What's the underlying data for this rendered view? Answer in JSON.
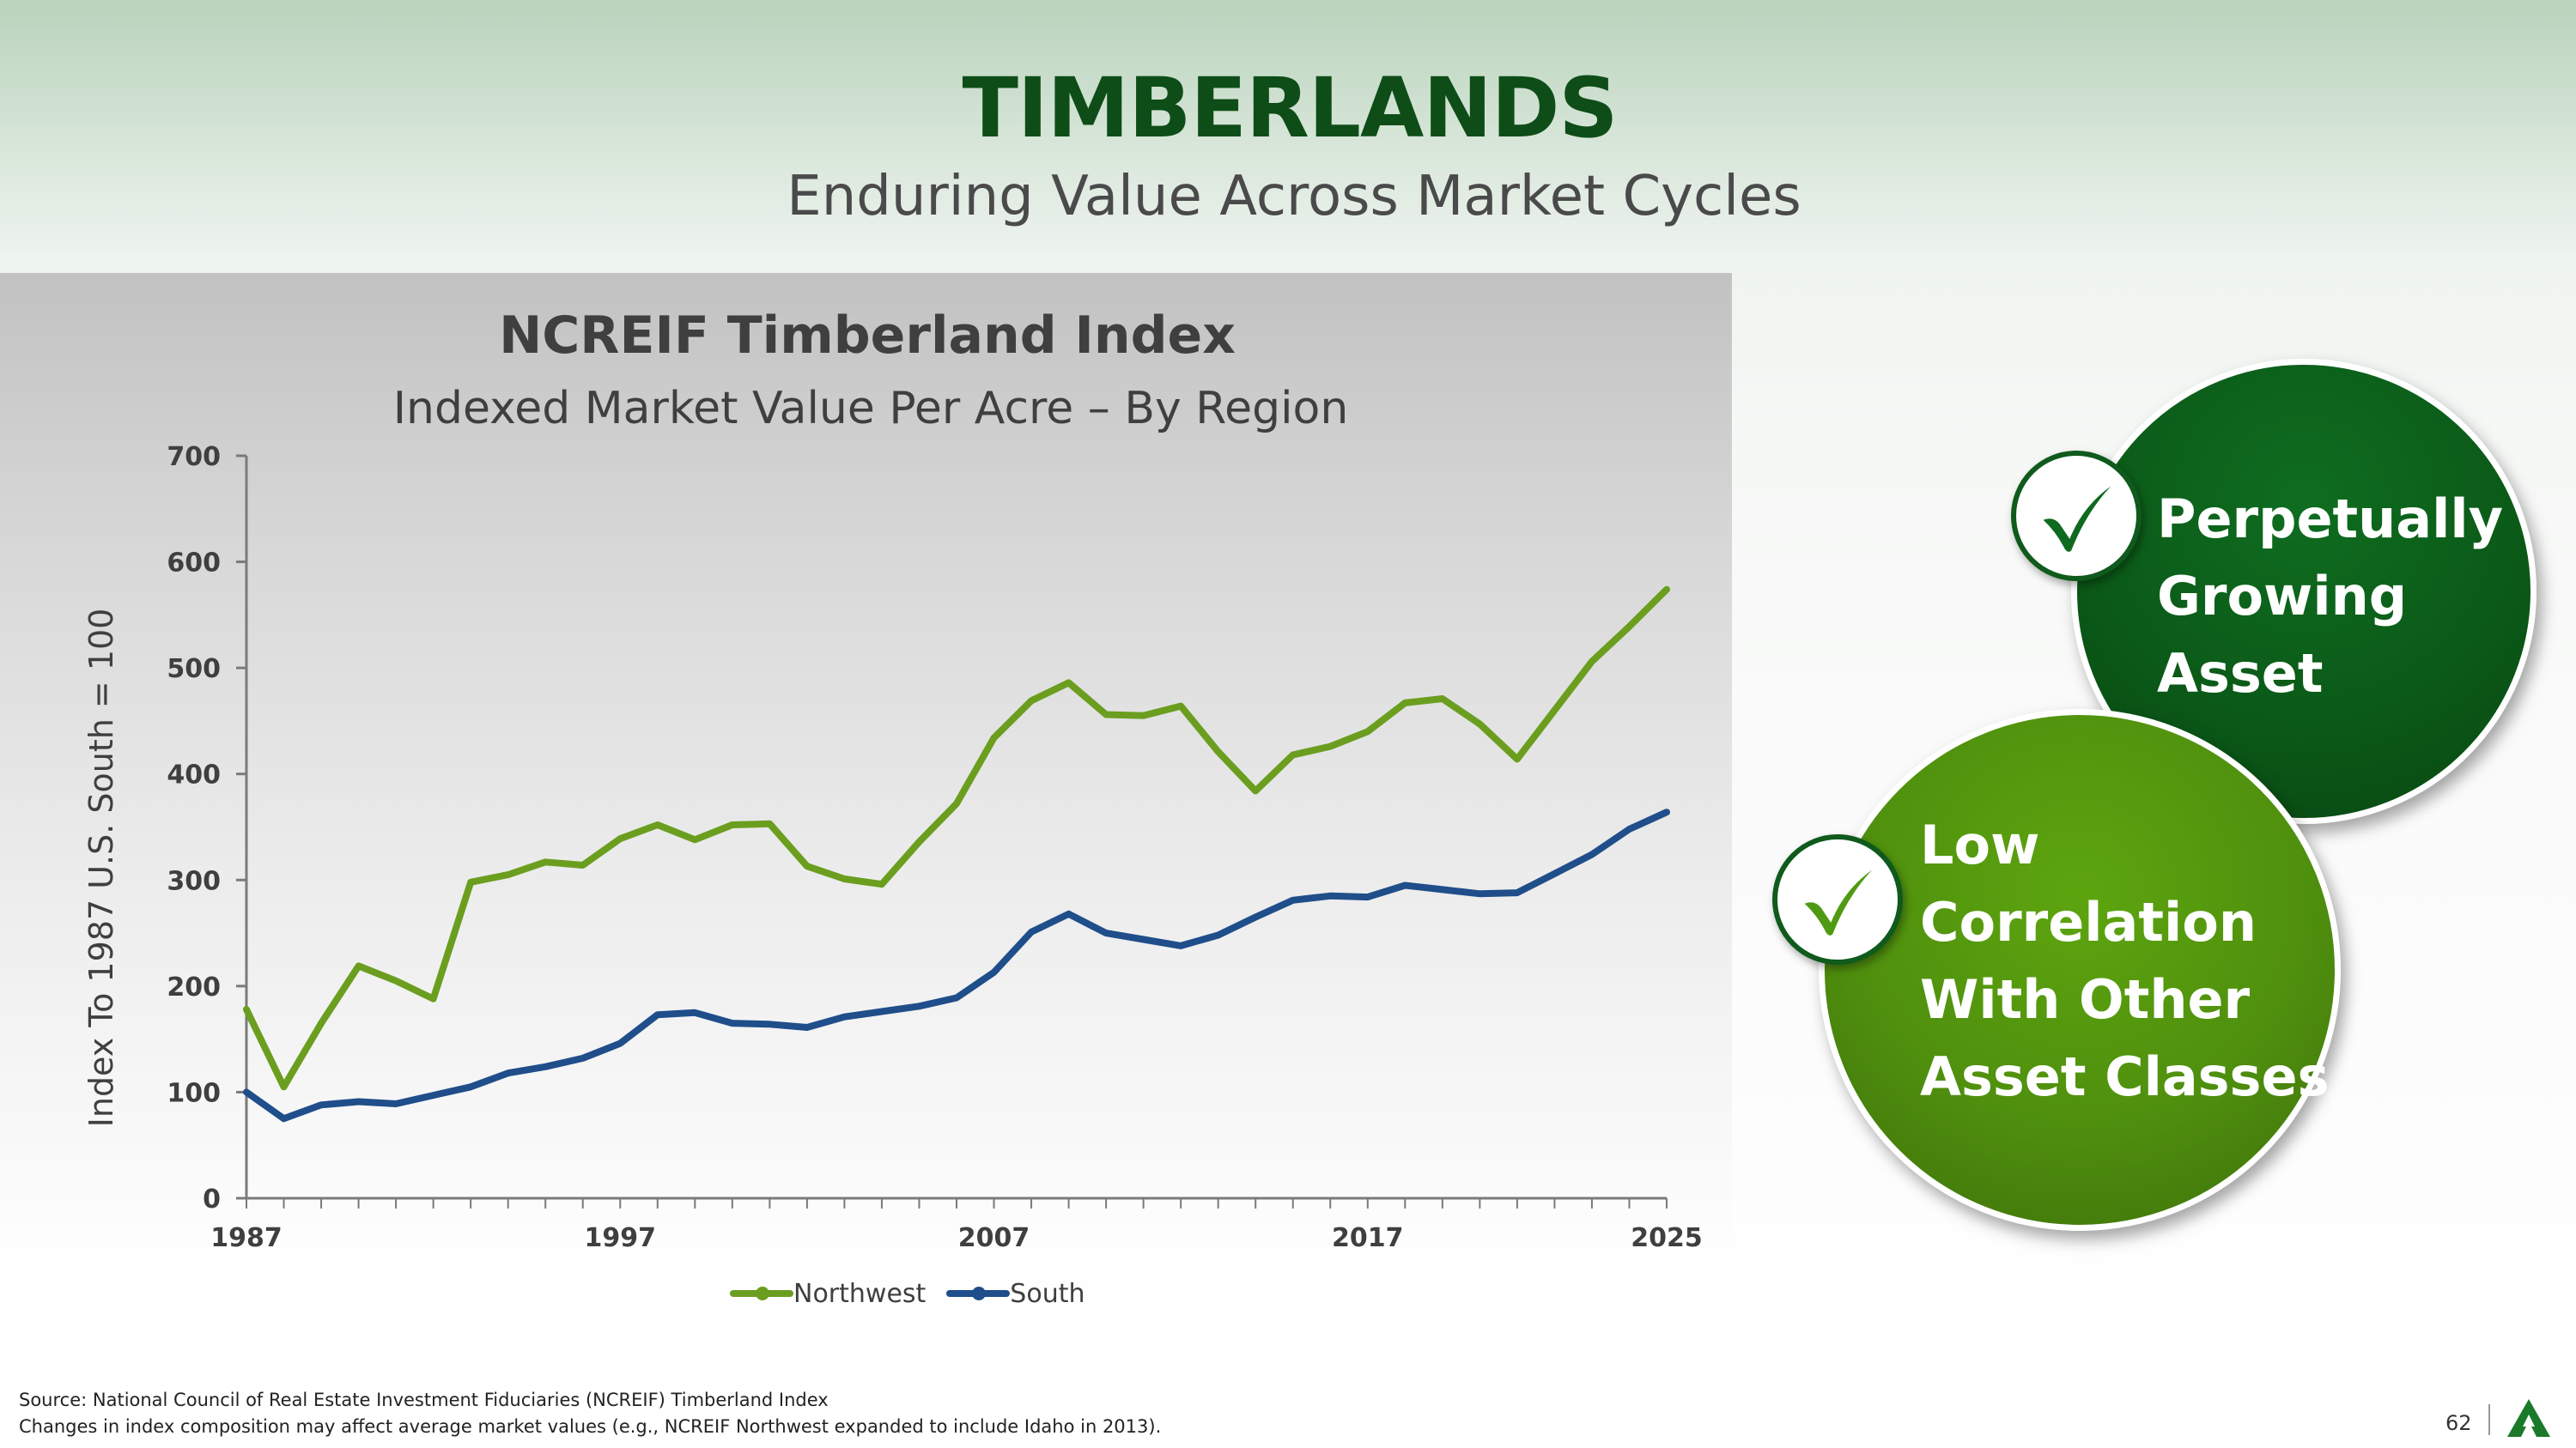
{
  "header": {
    "title": "TIMBERLANDS",
    "subtitle": "Enduring Value Across Market Cycles"
  },
  "chart_data": {
    "type": "line",
    "title": "NCREIF Timberland Index",
    "subtitle": "Indexed Market Value Per Acre – By Region",
    "xlabel": "",
    "ylabel": "Index To 1987 U.S. South = 100",
    "xlim": [
      1987,
      2025
    ],
    "ylim": [
      0,
      700
    ],
    "x_ticks": [
      1987,
      1997,
      2007,
      2017,
      2025
    ],
    "y_ticks": [
      0,
      100,
      200,
      300,
      400,
      500,
      600,
      700
    ],
    "legend_position": "bottom",
    "grid": false,
    "x": [
      1987,
      1988,
      1989,
      1990,
      1991,
      1992,
      1993,
      1994,
      1995,
      1996,
      1997,
      1998,
      1999,
      2000,
      2001,
      2002,
      2003,
      2004,
      2005,
      2006,
      2007,
      2008,
      2009,
      2010,
      2011,
      2012,
      2013,
      2014,
      2015,
      2016,
      2017,
      2018,
      2019,
      2020,
      2021,
      2022,
      2023,
      2024,
      2025
    ],
    "series": [
      {
        "name": "Northwest",
        "color": "#6b9e1f",
        "values": [
          178,
          105,
          165,
          219,
          205,
          188,
          298,
          305,
          317,
          314,
          339,
          352,
          338,
          352,
          353,
          313,
          301,
          296,
          336,
          372,
          434,
          469,
          486,
          456,
          455,
          464,
          421,
          384,
          418,
          426,
          440,
          467,
          471,
          447,
          414,
          460,
          506,
          539,
          574
        ]
      },
      {
        "name": "South",
        "color": "#1f4e8a",
        "values": [
          100,
          75,
          88,
          91,
          89,
          97,
          105,
          118,
          124,
          132,
          146,
          173,
          175,
          165,
          164,
          161,
          171,
          176,
          181,
          189,
          213,
          251,
          268,
          250,
          244,
          238,
          248,
          265,
          281,
          285,
          284,
          295,
          291,
          287,
          288,
          306,
          324,
          348,
          364
        ]
      }
    ]
  },
  "badges": [
    {
      "lines": [
        "Perpetually",
        "Growing",
        "Asset"
      ],
      "icon": "check-icon"
    },
    {
      "lines": [
        "Low",
        "Correlation",
        "With Other",
        "Asset Classes"
      ],
      "icon": "check-icon"
    }
  ],
  "footer": {
    "source_line1": "Source: National Council of Real Estate Investment Fiduciaries (NCREIF) Timberland Index",
    "source_line2": "Changes in index composition may affect average market values (e.g., NCREIF Northwest expanded to include Idaho in 2013).",
    "page_number": "62"
  },
  "colors": {
    "brand_green": "#0e4d17",
    "badge_dark": "#0b5a18",
    "badge_light": "#4f8f0e"
  }
}
